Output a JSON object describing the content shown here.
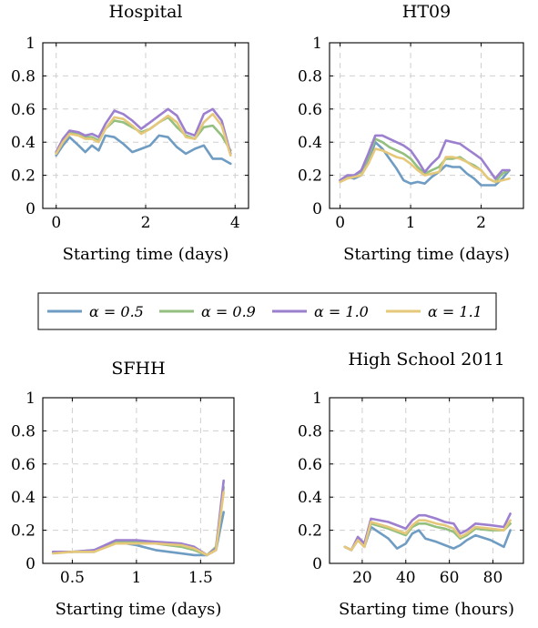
{
  "colors": {
    "alpha_0_5": "#6f9cc2",
    "alpha_0_9": "#93bf7f",
    "alpha_1_0": "#9d7fcf",
    "alpha_1_1": "#e6c87a",
    "grid": "#cfcfcf",
    "axis": "#000000"
  },
  "legend": {
    "items": [
      {
        "label": "α = 0.5",
        "color": "#6f9cc2"
      },
      {
        "label": "α = 0.9",
        "color": "#93bf7f"
      },
      {
        "label": "α = 1.0",
        "color": "#9d7fcf"
      },
      {
        "label": "α = 1.1",
        "color": "#e6c87a"
      }
    ]
  },
  "chart_data": [
    {
      "type": "line",
      "title": "Hospital",
      "xlabel": "Starting time (days)",
      "ylabel": "",
      "xlim": [
        -0.3,
        4.3
      ],
      "ylim": [
        0,
        1
      ],
      "xticks": [
        0,
        2,
        4
      ],
      "yticks": [
        0,
        0.2,
        0.4,
        0.6,
        0.8,
        1
      ],
      "ytick_labels": [
        "0",
        "0.2",
        "0.4",
        "0.6",
        "0.8",
        "1"
      ],
      "grid": true,
      "x": [
        0,
        0.15,
        0.3,
        0.5,
        0.65,
        0.8,
        0.95,
        1.1,
        1.3,
        1.5,
        1.7,
        1.9,
        2.1,
        2.3,
        2.5,
        2.7,
        2.9,
        3.1,
        3.3,
        3.5,
        3.7,
        3.9
      ],
      "series": [
        {
          "name": "α = 0.5",
          "values": [
            0.32,
            0.38,
            0.43,
            0.38,
            0.34,
            0.38,
            0.35,
            0.44,
            0.43,
            0.39,
            0.34,
            0.36,
            0.38,
            0.44,
            0.43,
            0.37,
            0.33,
            0.36,
            0.38,
            0.3,
            0.3,
            0.27
          ]
        },
        {
          "name": "α = 0.9",
          "values": [
            0.33,
            0.41,
            0.46,
            0.45,
            0.43,
            0.43,
            0.41,
            0.48,
            0.53,
            0.52,
            0.49,
            0.46,
            0.48,
            0.52,
            0.55,
            0.49,
            0.44,
            0.42,
            0.49,
            0.5,
            0.44,
            0.35
          ]
        },
        {
          "name": "α = 1.0",
          "values": [
            0.34,
            0.42,
            0.47,
            0.46,
            0.44,
            0.45,
            0.43,
            0.51,
            0.59,
            0.57,
            0.53,
            0.48,
            0.52,
            0.56,
            0.6,
            0.56,
            0.46,
            0.44,
            0.57,
            0.6,
            0.53,
            0.33
          ]
        },
        {
          "name": "α = 1.1",
          "values": [
            0.33,
            0.4,
            0.45,
            0.44,
            0.42,
            0.42,
            0.4,
            0.48,
            0.55,
            0.54,
            0.5,
            0.45,
            0.48,
            0.52,
            0.56,
            0.52,
            0.43,
            0.42,
            0.52,
            0.57,
            0.5,
            0.32
          ]
        }
      ]
    },
    {
      "type": "line",
      "title": "HT09",
      "xlabel": "Starting time (days)",
      "ylabel": "",
      "xlim": [
        -0.15,
        2.6
      ],
      "ylim": [
        0,
        1
      ],
      "xticks": [
        0,
        1,
        2
      ],
      "yticks": [
        0,
        0.2,
        0.4,
        0.6,
        0.8,
        1
      ],
      "ytick_labels": [
        "0",
        "0.2",
        "0.4",
        "0.6",
        "0.8",
        "1"
      ],
      "grid": true,
      "x": [
        0,
        0.1,
        0.2,
        0.3,
        0.4,
        0.5,
        0.6,
        0.7,
        0.8,
        0.9,
        1.0,
        1.1,
        1.2,
        1.3,
        1.4,
        1.5,
        1.6,
        1.7,
        1.8,
        1.9,
        2.0,
        2.1,
        2.2,
        2.3,
        2.4
      ],
      "series": [
        {
          "name": "α = 0.5",
          "values": [
            0.17,
            0.19,
            0.18,
            0.2,
            0.28,
            0.4,
            0.36,
            0.3,
            0.24,
            0.17,
            0.15,
            0.16,
            0.15,
            0.19,
            0.22,
            0.26,
            0.25,
            0.25,
            0.21,
            0.18,
            0.14,
            0.14,
            0.14,
            0.18,
            0.23
          ]
        },
        {
          "name": "α = 0.9",
          "values": [
            0.17,
            0.19,
            0.2,
            0.22,
            0.31,
            0.42,
            0.4,
            0.37,
            0.35,
            0.33,
            0.3,
            0.25,
            0.21,
            0.23,
            0.25,
            0.3,
            0.3,
            0.31,
            0.28,
            0.26,
            0.23,
            0.18,
            0.16,
            0.21,
            0.23
          ]
        },
        {
          "name": "α = 1.0",
          "values": [
            0.17,
            0.2,
            0.2,
            0.23,
            0.33,
            0.44,
            0.44,
            0.42,
            0.4,
            0.38,
            0.35,
            0.29,
            0.22,
            0.27,
            0.31,
            0.41,
            0.4,
            0.39,
            0.36,
            0.33,
            0.3,
            0.24,
            0.18,
            0.23,
            0.23
          ]
        },
        {
          "name": "α = 1.1",
          "values": [
            0.16,
            0.18,
            0.19,
            0.2,
            0.27,
            0.36,
            0.35,
            0.33,
            0.31,
            0.3,
            0.27,
            0.23,
            0.2,
            0.21,
            0.22,
            0.31,
            0.31,
            0.3,
            0.28,
            0.25,
            0.23,
            0.18,
            0.16,
            0.17,
            0.18
          ]
        }
      ]
    },
    {
      "type": "line",
      "title": "SFHH",
      "xlabel": "Starting time (days)",
      "ylabel": "",
      "xlim": [
        0.27,
        1.76
      ],
      "ylim": [
        0,
        1
      ],
      "xticks": [
        0.5,
        1,
        1.5
      ],
      "xtick_labels": [
        "0.5",
        "1",
        "1.5"
      ],
      "yticks": [
        0,
        0.2,
        0.4,
        0.6,
        0.8,
        1
      ],
      "ytick_labels": [
        "0",
        "0.2",
        "0.4",
        "0.6",
        "0.8",
        "1"
      ],
      "grid": true,
      "x": [
        0.35,
        0.5,
        0.67,
        0.84,
        1.0,
        1.15,
        1.35,
        1.45,
        1.55,
        1.62,
        1.68
      ],
      "series": [
        {
          "name": "α = 0.5",
          "values": [
            0.07,
            0.07,
            0.07,
            0.13,
            0.11,
            0.08,
            0.06,
            0.05,
            0.05,
            0.08,
            0.31
          ]
        },
        {
          "name": "α = 0.9",
          "values": [
            0.07,
            0.07,
            0.08,
            0.13,
            0.13,
            0.12,
            0.1,
            0.08,
            0.05,
            0.1,
            0.46
          ]
        },
        {
          "name": "α = 1.0",
          "values": [
            0.07,
            0.07,
            0.08,
            0.14,
            0.14,
            0.13,
            0.12,
            0.1,
            0.05,
            0.09,
            0.5
          ]
        },
        {
          "name": "α = 1.1",
          "values": [
            0.06,
            0.07,
            0.07,
            0.12,
            0.12,
            0.12,
            0.11,
            0.09,
            0.05,
            0.08,
            0.43
          ]
        }
      ]
    },
    {
      "type": "line",
      "title": "High School 2011",
      "xlabel": "Starting time (hours)",
      "ylabel": "",
      "xlim": [
        5,
        94
      ],
      "ylim": [
        0,
        1
      ],
      "xticks": [
        20,
        40,
        60,
        80
      ],
      "yticks": [
        0,
        0.2,
        0.4,
        0.6,
        0.8,
        1
      ],
      "ytick_labels": [
        "0",
        "0.2",
        "0.4",
        "0.6",
        "0.8",
        "1"
      ],
      "grid": true,
      "x": [
        12,
        15,
        18,
        21,
        24,
        32,
        36,
        40,
        43,
        46,
        49,
        54,
        58,
        62,
        65,
        68,
        72,
        79,
        85,
        88
      ],
      "series": [
        {
          "name": "α = 0.5",
          "values": [
            0.1,
            0.08,
            0.14,
            0.1,
            0.22,
            0.15,
            0.09,
            0.12,
            0.18,
            0.2,
            0.15,
            0.13,
            0.11,
            0.09,
            0.11,
            0.14,
            0.17,
            0.14,
            0.1,
            0.2
          ]
        },
        {
          "name": "α = 0.9",
          "values": [
            0.1,
            0.08,
            0.15,
            0.11,
            0.24,
            0.21,
            0.19,
            0.17,
            0.22,
            0.24,
            0.24,
            0.22,
            0.21,
            0.19,
            0.15,
            0.17,
            0.21,
            0.2,
            0.2,
            0.24
          ]
        },
        {
          "name": "α = 1.0",
          "values": [
            0.1,
            0.08,
            0.16,
            0.12,
            0.27,
            0.25,
            0.23,
            0.21,
            0.26,
            0.29,
            0.29,
            0.27,
            0.25,
            0.24,
            0.18,
            0.2,
            0.24,
            0.23,
            0.22,
            0.3
          ]
        },
        {
          "name": "α = 1.1",
          "values": [
            0.1,
            0.08,
            0.14,
            0.1,
            0.25,
            0.22,
            0.2,
            0.18,
            0.23,
            0.26,
            0.26,
            0.24,
            0.23,
            0.21,
            0.16,
            0.18,
            0.22,
            0.21,
            0.2,
            0.26
          ]
        }
      ]
    }
  ]
}
